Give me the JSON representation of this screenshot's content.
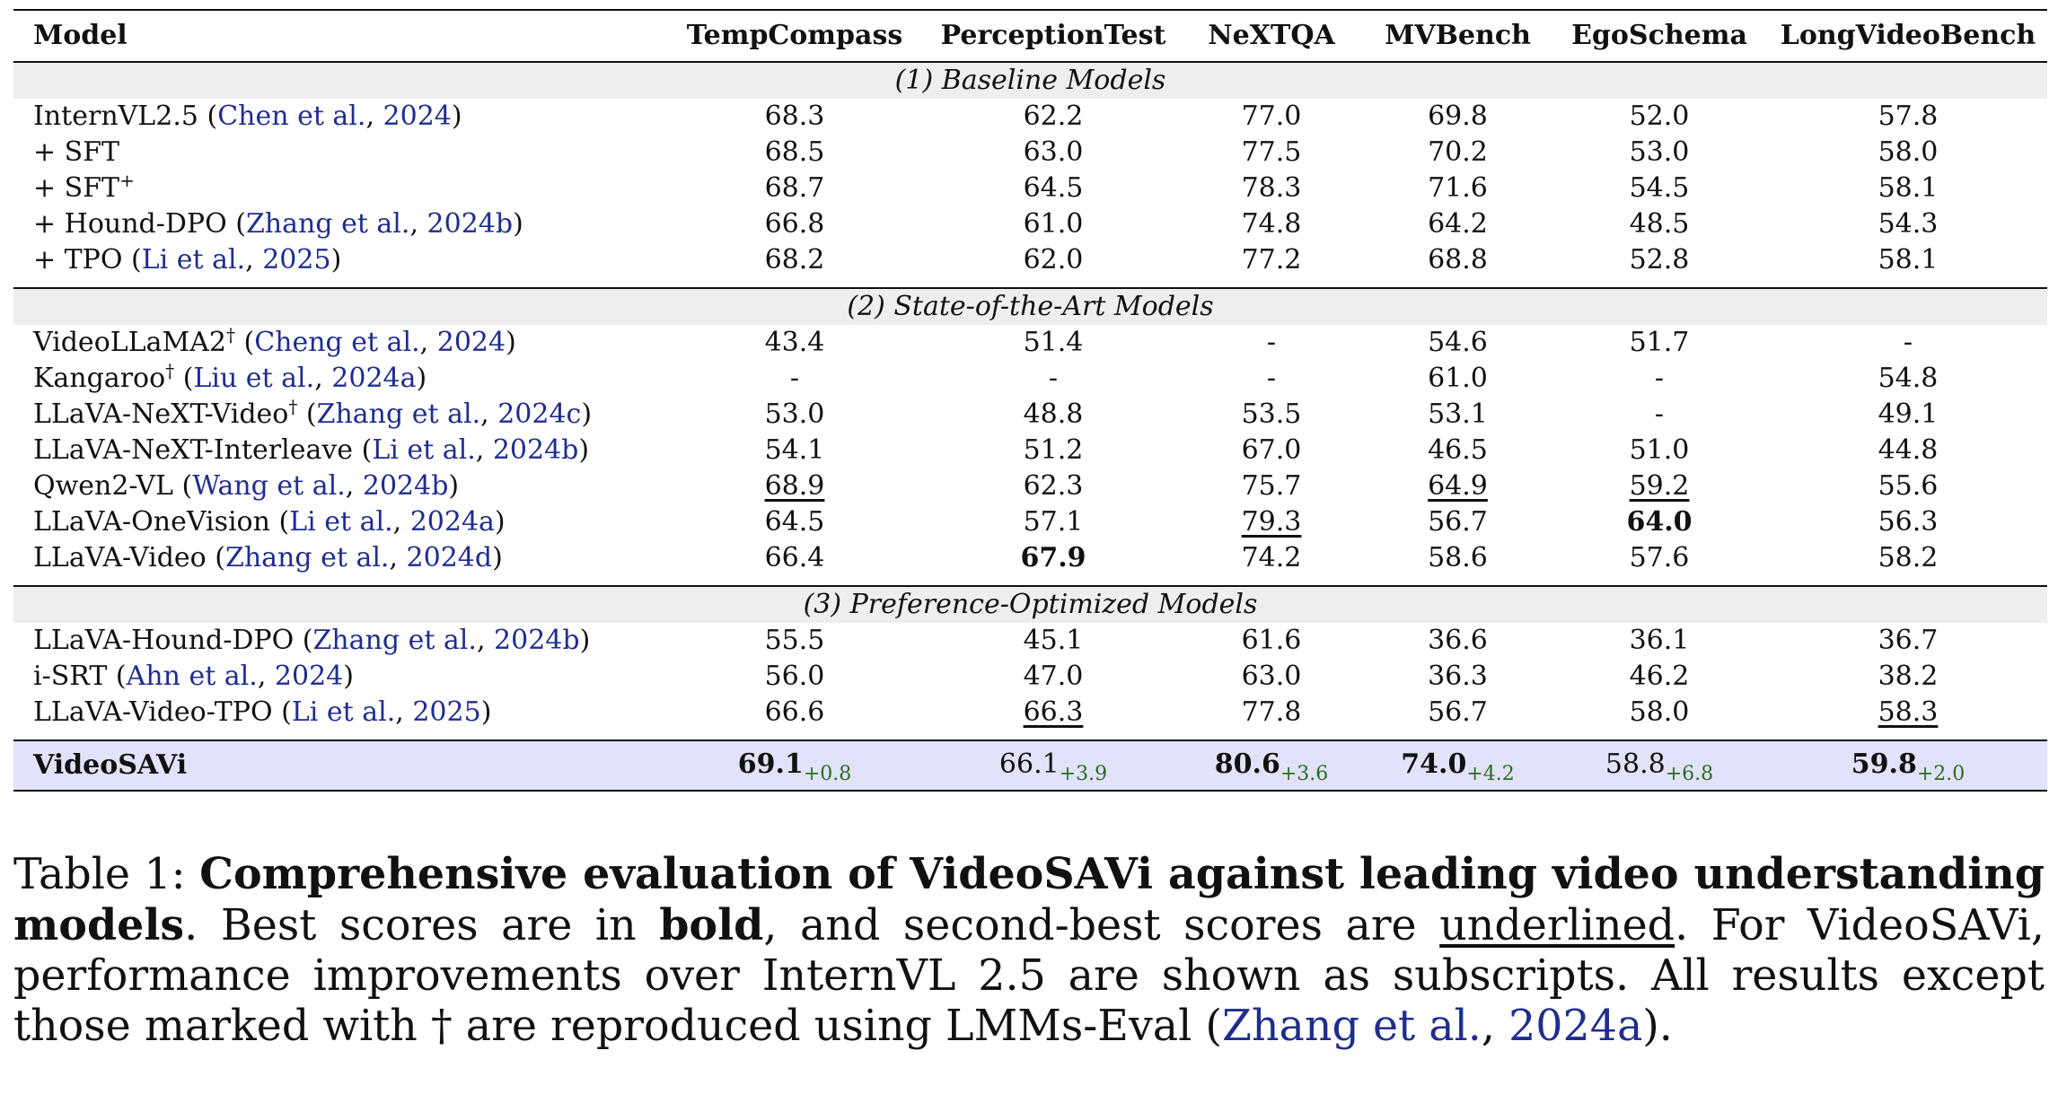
{
  "table": {
    "columns": [
      "Model",
      "TempCompass",
      "PerceptionTest",
      "NeXTQA",
      "MVBench",
      "EgoSchema",
      "LongVideoBench"
    ],
    "sections": [
      {
        "title": "(1) Baseline Models",
        "rows": [
          {
            "name": "InternVL2.5 (",
            "cite": "Chen et al.",
            "sep": ", ",
            "year": "2024",
            "close": ")",
            "dagger": "",
            "values": [
              {
                "v": "68.3"
              },
              {
                "v": "62.2"
              },
              {
                "v": "77.0"
              },
              {
                "v": "69.8"
              },
              {
                "v": "52.0"
              },
              {
                "v": "57.8"
              }
            ]
          },
          {
            "name": "+ SFT",
            "cite": "",
            "sep": "",
            "year": "",
            "close": "",
            "dagger": "",
            "values": [
              {
                "v": "68.5"
              },
              {
                "v": "63.0"
              },
              {
                "v": "77.5"
              },
              {
                "v": "70.2"
              },
              {
                "v": "53.0"
              },
              {
                "v": "58.0"
              }
            ]
          },
          {
            "name": "+ SFT",
            "sup": "+",
            "cite": "",
            "sep": "",
            "year": "",
            "close": "",
            "dagger": "",
            "values": [
              {
                "v": "68.7"
              },
              {
                "v": "64.5"
              },
              {
                "v": "78.3"
              },
              {
                "v": "71.6"
              },
              {
                "v": "54.5"
              },
              {
                "v": "58.1"
              }
            ]
          },
          {
            "name": "+ Hound-DPO (",
            "cite": "Zhang et al.",
            "sep": ", ",
            "year": "2024b",
            "close": ")",
            "dagger": "",
            "values": [
              {
                "v": "66.8"
              },
              {
                "v": "61.0"
              },
              {
                "v": "74.8"
              },
              {
                "v": "64.2"
              },
              {
                "v": "48.5"
              },
              {
                "v": "54.3"
              }
            ]
          },
          {
            "name": "+ TPO (",
            "cite": "Li et al.",
            "sep": ", ",
            "year": "2025",
            "close": ")",
            "dagger": "",
            "values": [
              {
                "v": "68.2"
              },
              {
                "v": "62.0"
              },
              {
                "v": "77.2"
              },
              {
                "v": "68.8"
              },
              {
                "v": "52.8"
              },
              {
                "v": "58.1"
              }
            ]
          }
        ]
      },
      {
        "title": "(2) State-of-the-Art Models",
        "rows": [
          {
            "name": "VideoLLaMA2",
            "dagger": "†",
            "open": " (",
            "cite": "Cheng et al.",
            "sep": ", ",
            "year": "2024",
            "close": ")",
            "values": [
              {
                "v": "43.4"
              },
              {
                "v": "51.4"
              },
              {
                "v": "-"
              },
              {
                "v": "54.6"
              },
              {
                "v": "51.7"
              },
              {
                "v": "-"
              }
            ]
          },
          {
            "name": "Kangaroo",
            "dagger": "†",
            "open": " (",
            "cite": "Liu et al.",
            "sep": ", ",
            "year": "2024a",
            "close": ")",
            "values": [
              {
                "v": "-"
              },
              {
                "v": "-"
              },
              {
                "v": "-"
              },
              {
                "v": "61.0"
              },
              {
                "v": "-"
              },
              {
                "v": "54.8"
              }
            ]
          },
          {
            "name": "LLaVA-NeXT-Video",
            "dagger": "†",
            "open": " (",
            "cite": "Zhang et al.",
            "sep": ", ",
            "year": "2024c",
            "close": ")",
            "values": [
              {
                "v": "53.0"
              },
              {
                "v": "48.8"
              },
              {
                "v": "53.5"
              },
              {
                "v": "53.1"
              },
              {
                "v": "-"
              },
              {
                "v": "49.1"
              }
            ]
          },
          {
            "name": "LLaVA-NeXT-Interleave",
            "dagger": "",
            "open": " (",
            "cite": "Li et al.",
            "sep": ", ",
            "year": "2024b",
            "close": ")",
            "values": [
              {
                "v": "54.1"
              },
              {
                "v": "51.2"
              },
              {
                "v": "67.0"
              },
              {
                "v": "46.5"
              },
              {
                "v": "51.0"
              },
              {
                "v": "44.8"
              }
            ]
          },
          {
            "name": "Qwen2-VL",
            "dagger": "",
            "open": " (",
            "cite": "Wang et al.",
            "sep": ", ",
            "year": "2024b",
            "close": ")",
            "values": [
              {
                "v": "68.9",
                "u": true
              },
              {
                "v": "62.3"
              },
              {
                "v": "75.7"
              },
              {
                "v": "64.9",
                "u": true
              },
              {
                "v": "59.2",
                "u": true
              },
              {
                "v": "55.6"
              }
            ]
          },
          {
            "name": "LLaVA-OneVision",
            "dagger": "",
            "open": " (",
            "cite": "Li et al.",
            "sep": ", ",
            "year": "2024a",
            "close": ")",
            "values": [
              {
                "v": "64.5"
              },
              {
                "v": "57.1"
              },
              {
                "v": "79.3",
                "u": true
              },
              {
                "v": "56.7"
              },
              {
                "v": "64.0",
                "b": true
              },
              {
                "v": "56.3"
              }
            ]
          },
          {
            "name": "LLaVA-Video",
            "dagger": "",
            "open": " (",
            "cite": "Zhang et al.",
            "sep": ", ",
            "year": "2024d",
            "close": ")",
            "values": [
              {
                "v": "66.4"
              },
              {
                "v": "67.9",
                "b": true
              },
              {
                "v": "74.2"
              },
              {
                "v": "58.6"
              },
              {
                "v": "57.6"
              },
              {
                "v": "58.2"
              }
            ]
          }
        ]
      },
      {
        "title": "(3) Preference-Optimized Models",
        "rows": [
          {
            "name": "LLaVA-Hound-DPO",
            "dagger": "",
            "open": " (",
            "cite": "Zhang et al.",
            "sep": ", ",
            "year": "2024b",
            "close": ")",
            "values": [
              {
                "v": "55.5"
              },
              {
                "v": "45.1"
              },
              {
                "v": "61.6"
              },
              {
                "v": "36.6"
              },
              {
                "v": "36.1"
              },
              {
                "v": "36.7"
              }
            ]
          },
          {
            "name": "i-SRT",
            "dagger": "",
            "open": " (",
            "cite": "Ahn et al.",
            "sep": ", ",
            "year": "2024",
            "close": ")",
            "values": [
              {
                "v": "56.0"
              },
              {
                "v": "47.0"
              },
              {
                "v": "63.0"
              },
              {
                "v": "36.3"
              },
              {
                "v": "46.2"
              },
              {
                "v": "38.2"
              }
            ]
          },
          {
            "name": "LLaVA-Video-TPO",
            "dagger": "",
            "open": " (",
            "cite": "Li et al.",
            "sep": ", ",
            "year": "2025",
            "close": ")",
            "values": [
              {
                "v": "66.6"
              },
              {
                "v": "66.3",
                "u": true
              },
              {
                "v": "77.8"
              },
              {
                "v": "56.7"
              },
              {
                "v": "58.0"
              },
              {
                "v": "58.3",
                "u": true
              }
            ]
          }
        ]
      }
    ],
    "final_row": {
      "name": "VideoSAVi",
      "values": [
        {
          "v": "69.1",
          "b": true,
          "d": "+0.8"
        },
        {
          "v": "66.1",
          "d": "+3.9"
        },
        {
          "v": "80.6",
          "b": true,
          "d": "+3.6"
        },
        {
          "v": "74.0",
          "b": true,
          "d": "+4.2"
        },
        {
          "v": "58.8",
          "d": "+6.8"
        },
        {
          "v": "59.8",
          "b": true,
          "d": "+2.0"
        }
      ]
    }
  },
  "caption": {
    "label": "Table 1: ",
    "bold_title": "Comprehensive evaluation of VideoSAVi against leading video understanding models",
    "t1": ". Best scores are in ",
    "bold_word": "bold",
    "t2": ", and second-best scores are ",
    "underlined_word": "underlined",
    "t3": ". For VideoSAVi, performance improvements over InternVL 2.5 are shown as subscripts. All results except those marked with † are reproduced using LMMs-Eval (",
    "cite": "Zhang et al.",
    "sep": ", ",
    "year": "2024a",
    "t4": ")."
  },
  "colors": {
    "citation": "#1f2d8f",
    "improvement": "#2b6b1f",
    "highlight_row": "#e2e2fb",
    "section_band": "#eeeeee"
  }
}
